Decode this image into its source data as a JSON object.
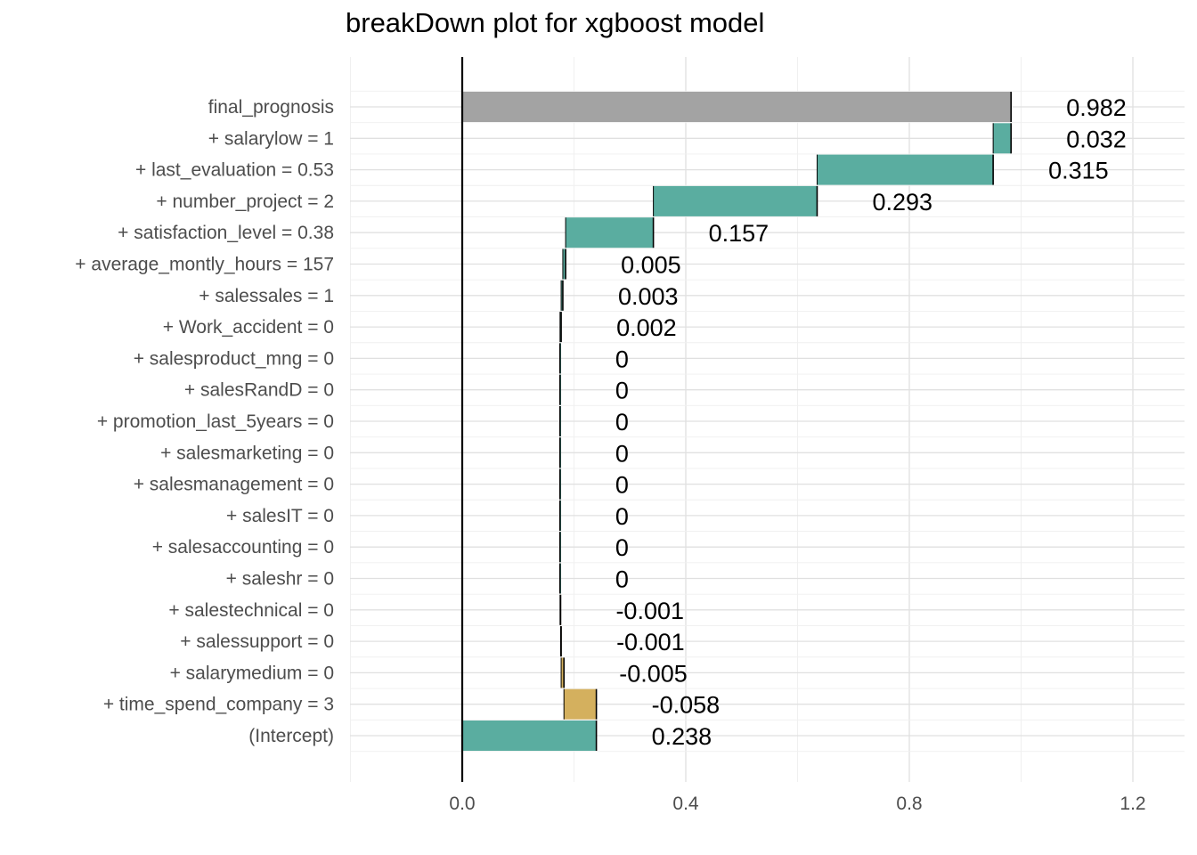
{
  "chart_data": {
    "type": "bar",
    "subtype": "waterfall",
    "title": "breakDown plot for xgboost model",
    "xlabel": "",
    "ylabel": "",
    "xlim": [
      -0.2,
      1.3
    ],
    "x_ticks": [
      "0.0",
      "0.4",
      "0.8",
      "1.2"
    ],
    "grid": true,
    "legend": "none",
    "colors": {
      "positive": "#5aada0",
      "negative": "#d4b05e",
      "final": "#a3a3a3",
      "grid": "#e6e6e6"
    },
    "rows": [
      {
        "label": "final_prognosis",
        "value_label": "0.982",
        "start": 0.0,
        "end": 0.982,
        "kind": "final"
      },
      {
        "label": "+ salarylow = 1",
        "value_label": "0.032",
        "start": 0.95,
        "end": 0.982,
        "kind": "positive"
      },
      {
        "label": "+ last_evaluation = 0.53",
        "value_label": "0.315",
        "start": 0.635,
        "end": 0.95,
        "kind": "positive"
      },
      {
        "label": "+ number_project = 2",
        "value_label": "0.293",
        "start": 0.342,
        "end": 0.635,
        "kind": "positive"
      },
      {
        "label": "+ satisfaction_level = 0.38",
        "value_label": "0.157",
        "start": 0.185,
        "end": 0.342,
        "kind": "positive"
      },
      {
        "label": "+ average_montly_hours = 157",
        "value_label": "0.005",
        "start": 0.18,
        "end": 0.185,
        "kind": "positive"
      },
      {
        "label": "+ salessales = 1",
        "value_label": "0.003",
        "start": 0.177,
        "end": 0.18,
        "kind": "positive"
      },
      {
        "label": "+ Work_accident = 0",
        "value_label": "0.002",
        "start": 0.175,
        "end": 0.177,
        "kind": "positive"
      },
      {
        "label": "+ salesproduct_mng = 0",
        "value_label": "0",
        "start": 0.175,
        "end": 0.175,
        "kind": "positive"
      },
      {
        "label": "+ salesRandD = 0",
        "value_label": "0",
        "start": 0.175,
        "end": 0.175,
        "kind": "positive"
      },
      {
        "label": "+ promotion_last_5years = 0",
        "value_label": "0",
        "start": 0.175,
        "end": 0.175,
        "kind": "positive"
      },
      {
        "label": "+ salesmarketing = 0",
        "value_label": "0",
        "start": 0.175,
        "end": 0.175,
        "kind": "positive"
      },
      {
        "label": "+ salesmanagement = 0",
        "value_label": "0",
        "start": 0.175,
        "end": 0.175,
        "kind": "positive"
      },
      {
        "label": "+ salesIT = 0",
        "value_label": "0",
        "start": 0.175,
        "end": 0.175,
        "kind": "positive"
      },
      {
        "label": "+ salesaccounting = 0",
        "value_label": "0",
        "start": 0.175,
        "end": 0.175,
        "kind": "positive"
      },
      {
        "label": "+ saleshr = 0",
        "value_label": "0",
        "start": 0.175,
        "end": 0.175,
        "kind": "positive"
      },
      {
        "label": "+ salestechnical = 0",
        "value_label": "-0.001",
        "start": 0.175,
        "end": 0.176,
        "kind": "negative"
      },
      {
        "label": "+ salessupport = 0",
        "value_label": "-0.001",
        "start": 0.176,
        "end": 0.177,
        "kind": "negative"
      },
      {
        "label": "+ salarymedium = 0",
        "value_label": "-0.005",
        "start": 0.177,
        "end": 0.182,
        "kind": "negative"
      },
      {
        "label": "+ time_spend_company = 3",
        "value_label": "-0.058",
        "start": 0.182,
        "end": 0.24,
        "kind": "negative"
      },
      {
        "label": "(Intercept)",
        "value_label": "0.238",
        "start": 0.0,
        "end": 0.24,
        "kind": "positive"
      }
    ]
  }
}
